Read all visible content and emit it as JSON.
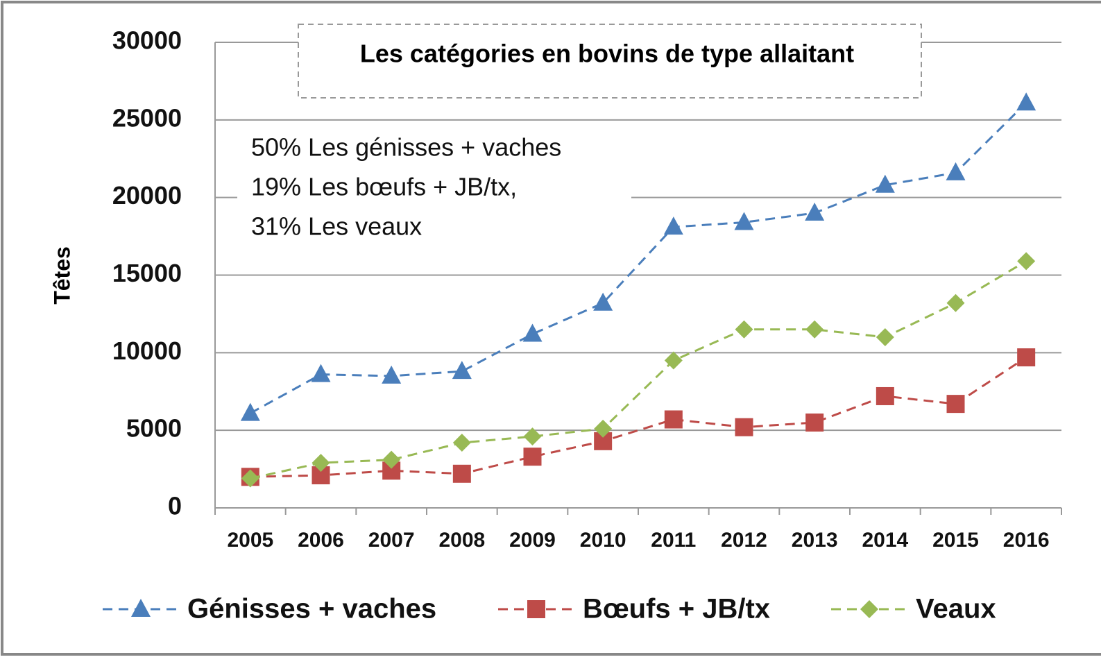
{
  "chart_data": {
    "type": "line",
    "title": "Les catégories  en bovins de type allaitant",
    "y_label": "Têtes",
    "annotations": [
      "50% Les génisses + vaches",
      "19% Les bœufs + JB/tx,",
      "31% Les veaux"
    ],
    "categories": [
      "2005",
      "2006",
      "2007",
      "2008",
      "2009",
      "2010",
      "2011",
      "2012",
      "2013",
      "2014",
      "2015",
      "2016"
    ],
    "series": [
      {
        "name": "Génisses + vaches",
        "color": "#4a7ebb",
        "marker": "triangle",
        "values": [
          6100,
          8600,
          8500,
          8800,
          11200,
          13200,
          18100,
          18400,
          19000,
          20800,
          21600,
          26100
        ]
      },
      {
        "name": "Bœufs + JB/tx",
        "color": "#be4b48",
        "marker": "square",
        "values": [
          2000,
          2100,
          2400,
          2200,
          3300,
          4300,
          5700,
          5200,
          5500,
          7200,
          6700,
          9700
        ]
      },
      {
        "name": "Veaux",
        "color": "#98b954",
        "marker": "diamond",
        "values": [
          1900,
          2900,
          3100,
          4200,
          4600,
          5100,
          9500,
          11500,
          11500,
          11000,
          13200,
          15900
        ]
      }
    ],
    "ylim": [
      0,
      30000
    ],
    "yticks": [
      0,
      5000,
      10000,
      15000,
      20000,
      25000,
      30000
    ],
    "grid": true,
    "legend": "bottom"
  }
}
